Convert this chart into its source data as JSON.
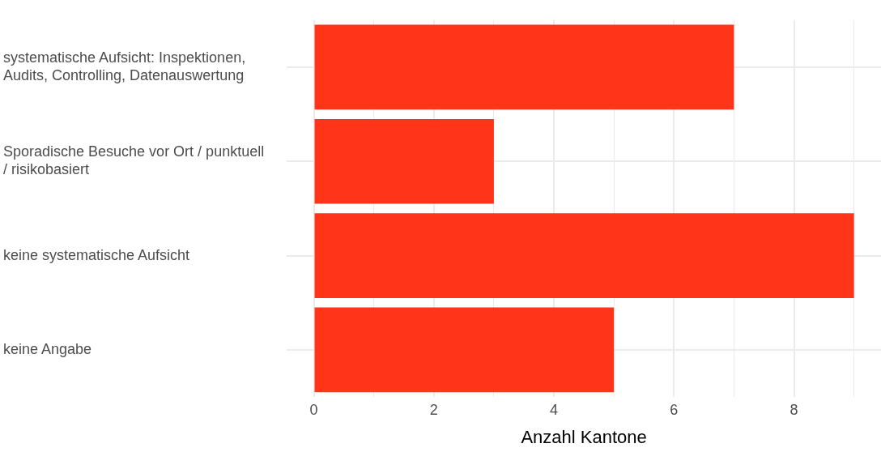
{
  "chart_data": {
    "type": "bar",
    "orientation": "horizontal",
    "xlabel": "Anzahl Kantone",
    "categories": [
      "systematische Aufsicht: Inspektionen, Audits, Controlling, Datenauswertung",
      "Sporadische Besuche vor Ort / punktuell / risikobasiert",
      "keine systematische Aufsicht",
      "keine Angabe"
    ],
    "values": [
      7,
      3,
      9,
      5
    ],
    "color": "#ff3419",
    "xlim": [
      -0.45,
      9.45
    ],
    "xticks": [
      0,
      {
        "value": 1,
        "label": null
      },
      2,
      {
        "value": 3,
        "label": null
      },
      4,
      {
        "value": 5,
        "label": null
      },
      6,
      {
        "value": 7,
        "label": null
      },
      8,
      {
        "value": 9,
        "label": null
      }
    ],
    "grid": true,
    "legend": false
  }
}
